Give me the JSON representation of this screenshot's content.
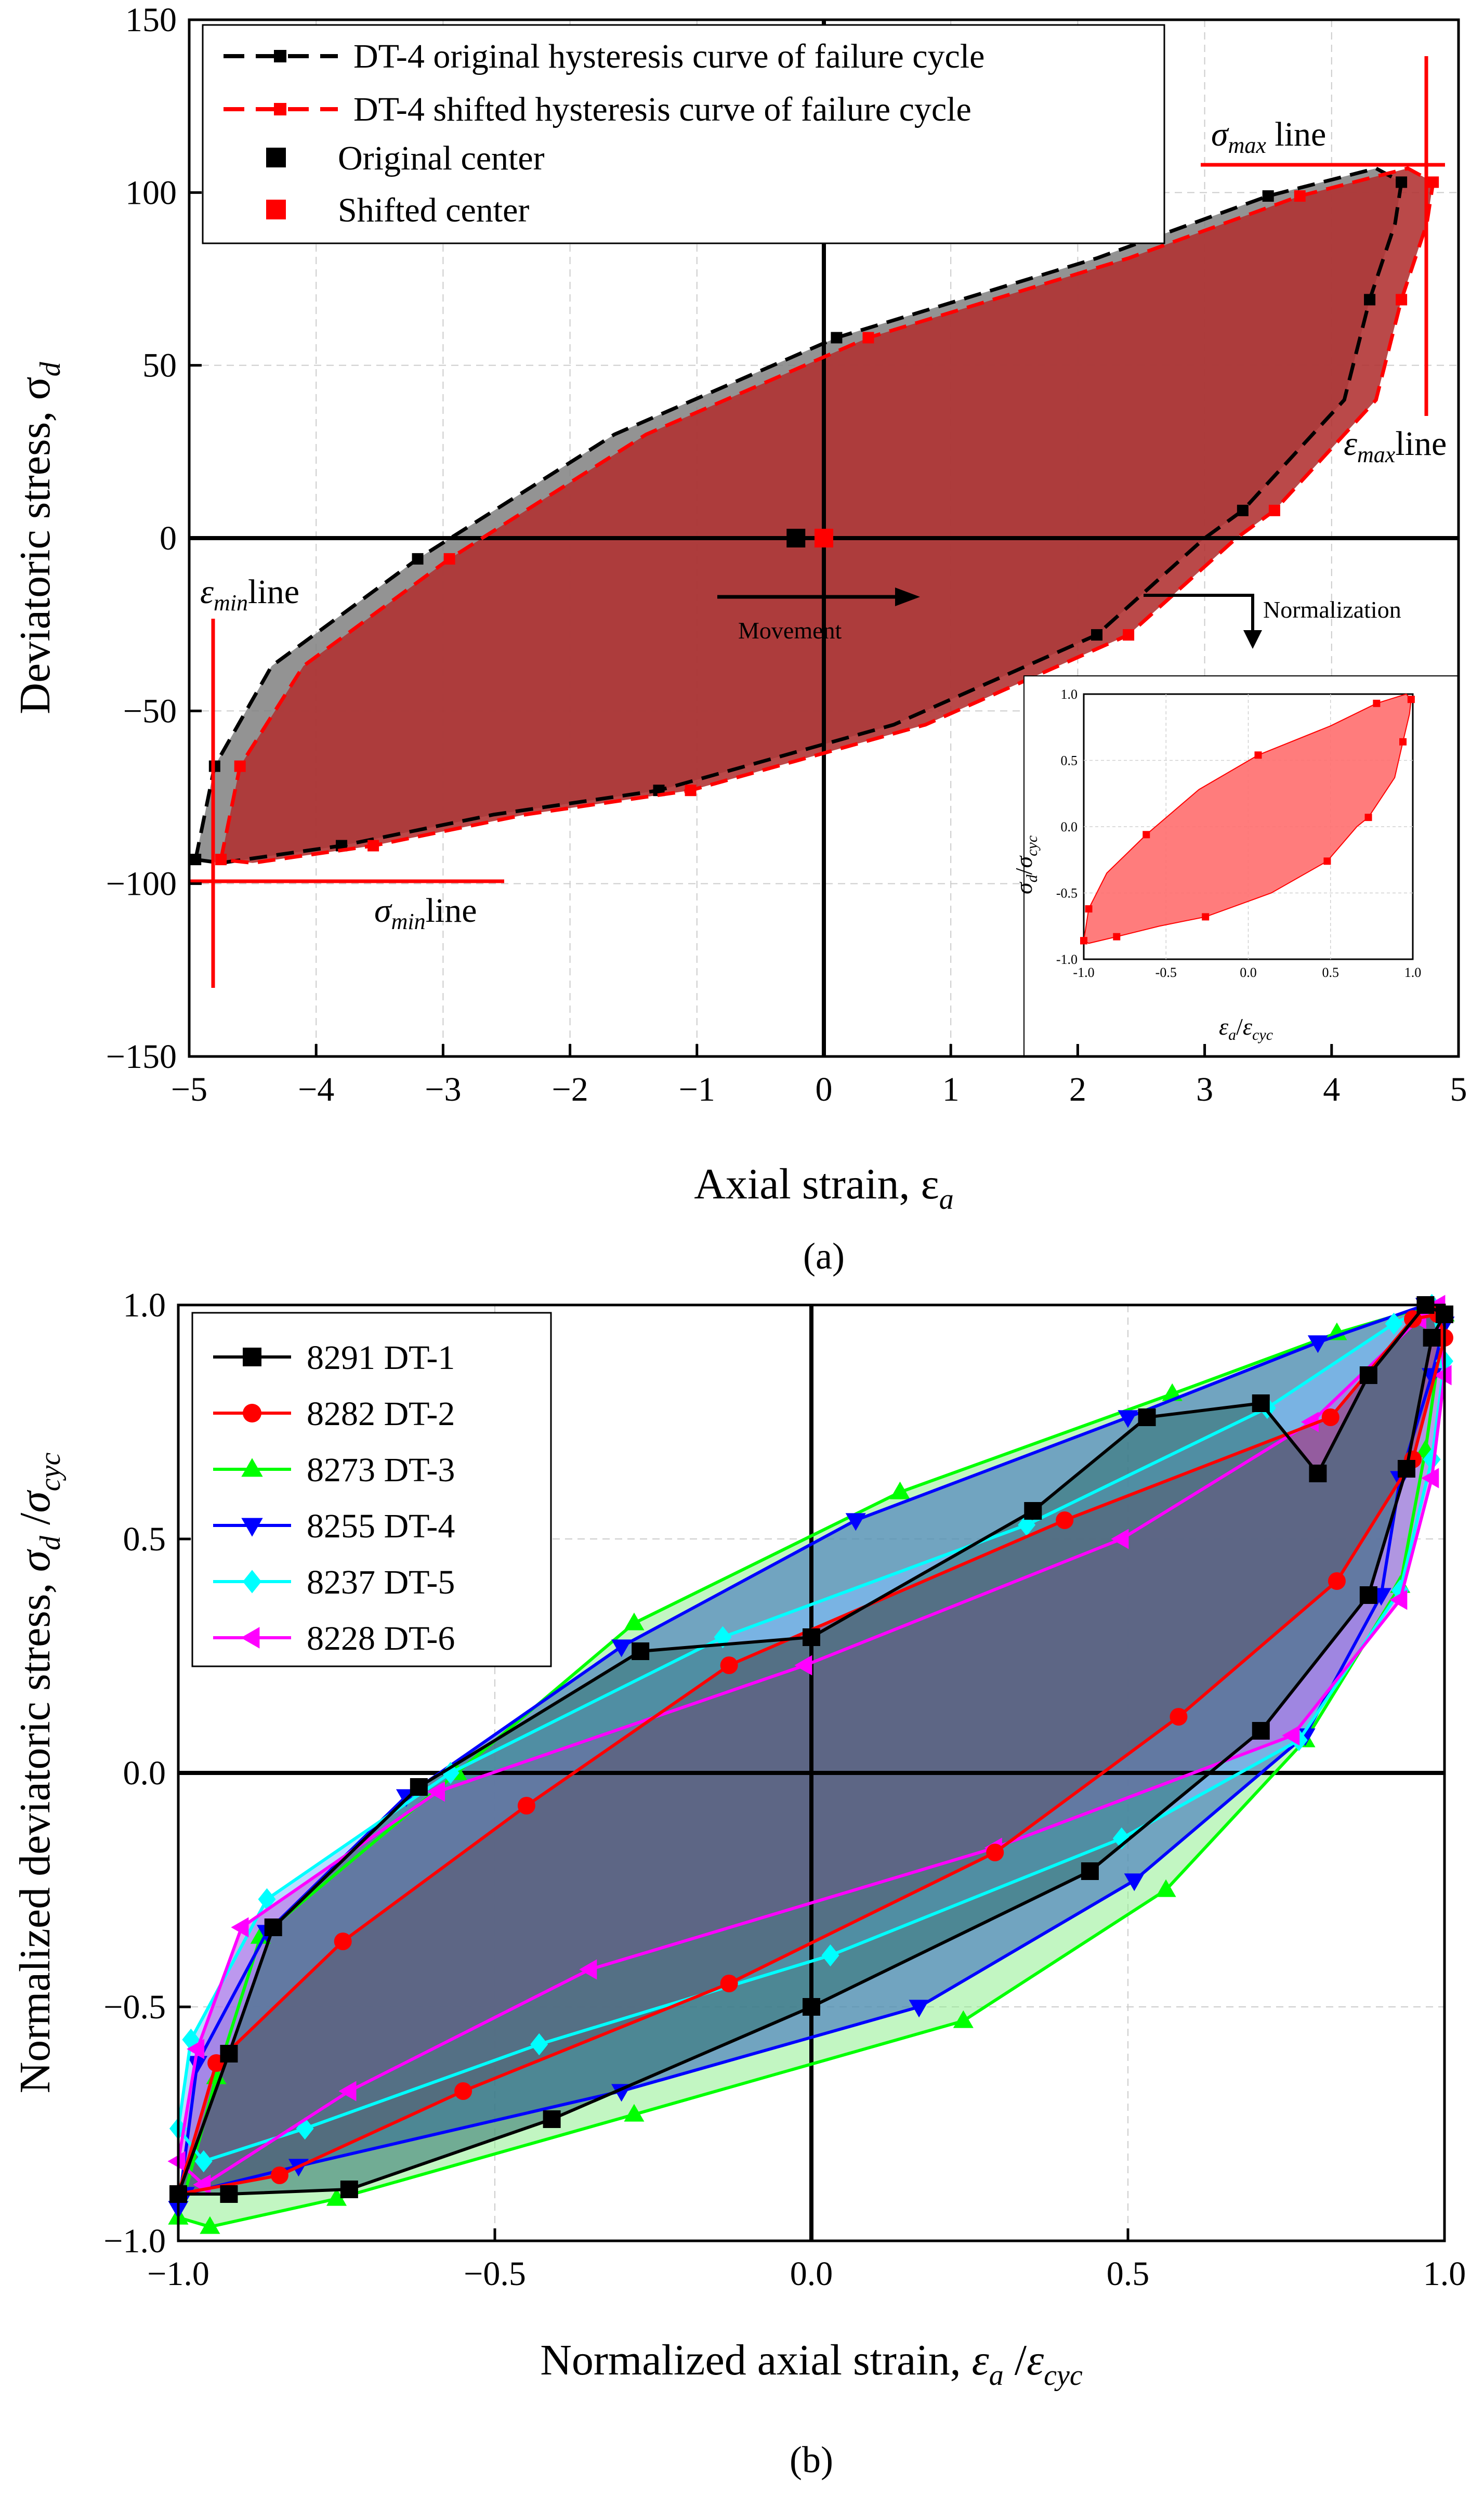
{
  "panel_a": {
    "label": "(a)",
    "chart_data": {
      "type": "line",
      "title": "",
      "xlabel": "Axial strain, ε",
      "xlabel_sub": "a",
      "ylabel": "Deviatoric stress, σ",
      "ylabel_sub": "d",
      "xlim": [
        -5,
        5
      ],
      "ylim": [
        -150,
        150
      ],
      "x_ticks": [
        -5,
        -4,
        -3,
        -2,
        -1,
        0,
        1,
        2,
        3,
        4,
        5
      ],
      "x_tick_labels": [
        "−5",
        "−4",
        "−3",
        "−2",
        "−1",
        "0",
        "1",
        "2",
        "3",
        "4",
        "5"
      ],
      "y_ticks": [
        -150,
        -100,
        -50,
        0,
        50,
        100,
        150
      ],
      "y_tick_labels": [
        "−150",
        "−100",
        "−50",
        "0",
        "50",
        "100",
        "150"
      ],
      "grid": true,
      "series": [
        {
          "name": "DT-4 original hysteresis curve of failure cycle",
          "color": "#000000",
          "fill": "#808080",
          "x": [
            -4.95,
            -4.8,
            -4.35,
            -3.2,
            -1.65,
            0.1,
            2.15,
            3.5,
            4.35,
            4.55,
            4.5,
            4.3,
            4.1,
            3.3,
            3.0,
            2.15,
            0.55,
            -1.3,
            -2.6,
            -3.8,
            -4.75,
            -4.95
          ],
          "y": [
            -93,
            -66,
            -37,
            -6,
            30,
            58,
            81,
            99,
            107,
            103,
            91,
            69,
            40,
            8,
            0,
            -28,
            -54,
            -73,
            -80,
            -89,
            -94,
            -93
          ]
        },
        {
          "name": "DT-4 shifted hysteresis curve of failure cycle",
          "color": "#ff0000",
          "fill": "#b03030",
          "x": [
            -4.75,
            -4.6,
            -4.1,
            -2.95,
            -1.4,
            0.35,
            2.4,
            3.75,
            4.6,
            4.8,
            4.75,
            4.55,
            4.35,
            3.55,
            3.25,
            2.4,
            0.8,
            -1.05,
            -2.35,
            -3.55,
            -4.5,
            -4.75
          ],
          "y": [
            -93,
            -66,
            -37,
            -6,
            30,
            58,
            81,
            99,
            107,
            103,
            91,
            69,
            40,
            8,
            0,
            -28,
            -54,
            -73,
            -80,
            -89,
            -94,
            -93
          ]
        },
        {
          "name": "Original center",
          "color": "#000000",
          "marker": "square",
          "x": [
            -0.22
          ],
          "y": [
            0
          ]
        },
        {
          "name": "Shifted center",
          "color": "#ff0000",
          "marker": "square",
          "x": [
            0.0
          ],
          "y": [
            0
          ]
        }
      ],
      "annotations": {
        "sigma_max_line": "σ_max line",
        "sigma_max_sym": "σ",
        "sigma_max_sub": "max",
        "sigma_max_word": " line",
        "eps_max_sym": "ε",
        "eps_max_sub": "max",
        "eps_max_word": "line",
        "eps_min_sym": "ε",
        "eps_min_sub": "min",
        "eps_min_word": "line",
        "sigma_min_sym": "σ",
        "sigma_min_sub": "min",
        "sigma_min_word": "line",
        "movement": "Movement",
        "normalization": "Normalization"
      },
      "inset": {
        "xlabel_sym": "ε",
        "xlabel_sub_a": "a",
        "xlabel_slash": "/",
        "xlabel_sym2": "ε",
        "xlabel_sub_b": "cyc",
        "ylabel_sym": "σ",
        "ylabel_sub_a": "d",
        "ylabel_slash": "/",
        "ylabel_sym2": "σ",
        "ylabel_sub_b": "cyc",
        "x_tick_labels": [
          "-1.0",
          "-0.5",
          "0.0",
          "0.5",
          "1.0"
        ],
        "y_tick_labels": [
          "1.0",
          "0.5",
          "0.0",
          "-0.5",
          "-1.0"
        ],
        "xlim": [
          -1,
          1
        ],
        "ylim": [
          -1,
          1
        ],
        "x": [
          -1.0,
          -0.97,
          -0.86,
          -0.62,
          -0.3,
          0.06,
          0.5,
          0.78,
          0.96,
          0.99,
          0.98,
          0.94,
          0.89,
          0.73,
          0.66,
          0.48,
          0.14,
          -0.26,
          -0.54,
          -0.8,
          -0.97,
          -1.0
        ],
        "y": [
          -0.86,
          -0.62,
          -0.35,
          -0.06,
          0.28,
          0.54,
          0.76,
          0.93,
          1.0,
          0.96,
          0.85,
          0.64,
          0.37,
          0.07,
          0.0,
          -0.26,
          -0.5,
          -0.68,
          -0.75,
          -0.83,
          -0.88,
          -0.86
        ]
      }
    }
  },
  "panel_b": {
    "label": "(b)",
    "chart_data": {
      "type": "line",
      "title": "",
      "xlabel": "Normalized axial strain, ",
      "xlabel_sym": "ε",
      "xlabel_sub": "a",
      "xlabel_slash": " /",
      "xlabel_sym2": "ε",
      "xlabel_sub2": "cyc",
      "ylabel": "Normalized deviatoric stress, ",
      "ylabel_sym": "σ",
      "ylabel_sub": "d",
      "ylabel_slash": " /",
      "ylabel_sym2": "σ",
      "ylabel_sub2": "cyc",
      "xlim": [
        -1,
        1
      ],
      "ylim": [
        -1,
        1
      ],
      "x_ticks": [
        -1,
        -0.5,
        0,
        0.5,
        1
      ],
      "x_tick_labels": [
        "−1.0",
        "−0.5",
        "0.0",
        "0.5",
        "1.0"
      ],
      "y_ticks": [
        -1,
        -0.5,
        0,
        0.5,
        1
      ],
      "y_tick_labels": [
        "−1.0",
        "−0.5",
        "0.0",
        "0.5",
        "1.0"
      ],
      "grid": true,
      "series": [
        {
          "name": "8291 DT-1",
          "color": "#000000",
          "marker": "square",
          "fill": "#2f6f6f",
          "x": [
            -1.0,
            -0.92,
            -0.85,
            -0.62,
            -0.27,
            0.0,
            0.35,
            0.53,
            0.71,
            0.8,
            0.88,
            0.97,
            1.0,
            0.98,
            0.94,
            0.88,
            0.71,
            0.44,
            0.0,
            -0.41,
            -0.73,
            -0.92,
            -1.0
          ],
          "y": [
            -0.9,
            -0.6,
            -0.33,
            -0.03,
            0.26,
            0.29,
            0.56,
            0.76,
            0.79,
            0.64,
            0.85,
            1.0,
            0.98,
            0.93,
            0.65,
            0.38,
            0.09,
            -0.21,
            -0.5,
            -0.74,
            -0.89,
            -0.9,
            -0.9
          ]
        },
        {
          "name": "8282 DT-2",
          "color": "#ff0000",
          "marker": "circle",
          "fill": "#8a3a6a",
          "x": [
            -1.0,
            -0.94,
            -0.74,
            -0.45,
            -0.13,
            0.4,
            0.82,
            0.95,
            0.99,
            1.0,
            0.95,
            0.83,
            0.58,
            0.29,
            -0.13,
            -0.55,
            -0.84,
            -1.0
          ],
          "y": [
            -0.9,
            -0.62,
            -0.36,
            -0.07,
            0.23,
            0.54,
            0.76,
            0.97,
            0.98,
            0.93,
            0.67,
            0.41,
            0.12,
            -0.17,
            -0.45,
            -0.68,
            -0.86,
            -0.9
          ]
        },
        {
          "name": "8273 DT-3",
          "color": "#00ff00",
          "marker": "triangle-up",
          "fill": "#90ee90",
          "x": [
            -1.0,
            -0.94,
            -0.87,
            -0.56,
            -0.28,
            0.14,
            0.57,
            0.83,
            0.98,
            1.0,
            0.97,
            0.93,
            0.78,
            0.56,
            0.24,
            -0.28,
            -0.75,
            -0.95,
            -1.0
          ],
          "y": [
            -0.95,
            -0.65,
            -0.35,
            0.0,
            0.32,
            0.6,
            0.81,
            0.94,
            1.0,
            0.98,
            0.69,
            0.4,
            0.07,
            -0.25,
            -0.53,
            -0.73,
            -0.91,
            -0.97,
            -0.95
          ]
        },
        {
          "name": "8255 DT-4",
          "color": "#0000ff",
          "marker": "triangle-down",
          "fill": "#3060c0",
          "x": [
            -1.0,
            -0.97,
            -0.86,
            -0.64,
            -0.3,
            0.07,
            0.5,
            0.8,
            0.97,
            1.0,
            0.98,
            0.93,
            0.9,
            0.78,
            0.51,
            0.17,
            -0.3,
            -0.81,
            -0.99,
            -1.0
          ],
          "y": [
            -0.93,
            -0.62,
            -0.34,
            -0.05,
            0.27,
            0.54,
            0.76,
            0.92,
            1.0,
            0.96,
            0.85,
            0.63,
            0.38,
            0.08,
            -0.23,
            -0.5,
            -0.68,
            -0.84,
            -0.9,
            -0.93
          ]
        },
        {
          "name": "8237 DT-5",
          "color": "#00ffff",
          "marker": "diamond",
          "fill": "#80c0ff",
          "x": [
            -1.0,
            -0.98,
            -0.86,
            -0.57,
            -0.14,
            0.34,
            0.72,
            0.92,
            0.98,
            1.0,
            0.98,
            0.93,
            0.77,
            0.49,
            0.03,
            -0.43,
            -0.8,
            -0.96,
            -1.0
          ],
          "y": [
            -0.76,
            -0.57,
            -0.27,
            0.0,
            0.29,
            0.53,
            0.78,
            0.96,
            1.0,
            0.88,
            0.67,
            0.39,
            0.07,
            -0.14,
            -0.39,
            -0.58,
            -0.76,
            -0.83,
            -0.76
          ]
        },
        {
          "name": "8228 DT-6",
          "color": "#ff00ff",
          "marker": "triangle-left",
          "fill": "#c060e0",
          "x": [
            -1.0,
            -0.97,
            -0.9,
            -0.59,
            -0.01,
            0.49,
            0.79,
            0.96,
            0.99,
            1.0,
            0.98,
            0.93,
            0.76,
            0.29,
            -0.35,
            -0.73,
            -0.96,
            -1.0
          ],
          "y": [
            -0.83,
            -0.59,
            -0.33,
            -0.04,
            0.23,
            0.5,
            0.75,
            0.97,
            1.0,
            0.85,
            0.63,
            0.37,
            0.08,
            -0.16,
            -0.42,
            -0.68,
            -0.88,
            -0.83
          ]
        }
      ]
    }
  }
}
